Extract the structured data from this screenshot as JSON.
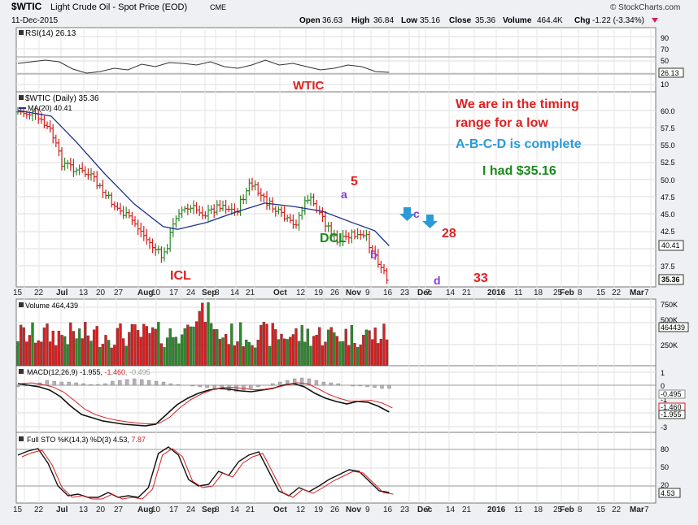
{
  "header": {
    "symbol": "$WTIC",
    "name": "Light Crude Oil - Spot Price (EOD)",
    "exchange": "CME",
    "date": "11-Dec-2015",
    "brand": "© StockCharts.com",
    "open_label": "Open",
    "open": "36.63",
    "high_label": "High",
    "high": "36.84",
    "low_label": "Low",
    "low": "35.16",
    "close_label": "Close",
    "close": "35.36",
    "volume_label": "Volume",
    "volume": "464.4K",
    "chg_label": "Chg",
    "chg": "-1.22 (-3.34%)"
  },
  "rsi_panel": {
    "legend": "RSI(14) 26.13",
    "ticks": [
      "90",
      "70",
      "50",
      "30",
      "10"
    ],
    "last_value": "26.13",
    "annotation": "WTIC"
  },
  "price_panel": {
    "legend_symbol": "$WTIC (Daily) 35.36",
    "legend_ma": "MA(20) 40.41",
    "ticks": [
      "60.0",
      "57.5",
      "55.0",
      "52.5",
      "50.0",
      "47.5",
      "45.0",
      "42.5",
      "37.5"
    ],
    "ma_tag": "40.41",
    "last_tag": "35.36",
    "annotations": {
      "timing1": "We are in the timing",
      "timing2": "range for a low",
      "abcd": "A-B-C-D is complete",
      "had": "I had $35.16",
      "icl": "ICL",
      "dcl": "DCL",
      "five": "5",
      "a": "a",
      "b": "b",
      "c": "c",
      "d": "d",
      "n28": "28",
      "n33": "33"
    }
  },
  "volume_panel": {
    "legend": "Volume 464,439",
    "ticks": [
      "750K",
      "500K",
      "250K"
    ],
    "last_tag": "464439"
  },
  "macd_panel": {
    "legend_a": "MACD(12,26,9) -1.955, ",
    "legend_b": "-1.460",
    "legend_c": ", -0.495",
    "ticks": [
      "1",
      "0",
      "-1",
      "-2",
      "-3"
    ],
    "tag_hist": "-0.495",
    "tag_signal": "-1.460",
    "tag_macd": "-1.955"
  },
  "sto_panel": {
    "legend_a": "Full STO %K(14,3) %D(3) 4.53, ",
    "legend_b": "7.87",
    "ticks": [
      "80",
      "50",
      "20"
    ],
    "last_tag": "4.53"
  },
  "x_axis_labels": [
    "15",
    "22",
    "Jul",
    "13",
    "20",
    "27",
    "Aug",
    "10",
    "17",
    "24",
    "Sep",
    "8",
    "14",
    "21",
    "Oct",
    "12",
    "19",
    "26",
    "Nov",
    "9",
    "16",
    "23",
    "Dec",
    "7",
    "14",
    "21",
    "2016",
    "11",
    "18",
    "25",
    "Feb",
    "8",
    "15",
    "22",
    "Mar",
    "7"
  ],
  "colors": {
    "up": "#2a8a2a",
    "down": "#d42020",
    "ma": "#1d2f8a",
    "annotation_red": "#e02020",
    "annotation_blue": "#2a9ad8",
    "annotation_green": "#1a8a1a",
    "annotation_purple": "#8a3ad8"
  },
  "chart_data": {
    "type": "candlestick",
    "title": "$WTIC Light Crude Oil - Spot Price (EOD)",
    "ylim": [
      35,
      62.5
    ],
    "ma_series": [
      {
        "date": "2015-06-15",
        "value": 60.0
      },
      {
        "date": "2015-07-01",
        "value": 59.2
      },
      {
        "date": "2015-07-13",
        "value": 55.5
      },
      {
        "date": "2015-07-27",
        "value": 50.8
      },
      {
        "date": "2015-08-10",
        "value": 46.5
      },
      {
        "date": "2015-08-24",
        "value": 43.2
      },
      {
        "date": "2015-08-31",
        "value": 42.8
      },
      {
        "date": "2015-09-14",
        "value": 43.8
      },
      {
        "date": "2015-09-28",
        "value": 45.3
      },
      {
        "date": "2015-10-12",
        "value": 46.6
      },
      {
        "date": "2015-10-26",
        "value": 46.1
      },
      {
        "date": "2015-11-09",
        "value": 45.4
      },
      {
        "date": "2015-11-23",
        "value": 43.8
      },
      {
        "date": "2015-12-04",
        "value": 42.6
      },
      {
        "date": "2015-12-11",
        "value": 40.41
      }
    ],
    "close_series": [
      {
        "date": "2015-06-15",
        "value": 59.8
      },
      {
        "date": "2015-06-22",
        "value": 59.5
      },
      {
        "date": "2015-07-01",
        "value": 57.0
      },
      {
        "date": "2015-07-06",
        "value": 52.5
      },
      {
        "date": "2015-07-13",
        "value": 51.5
      },
      {
        "date": "2015-07-20",
        "value": 50.5
      },
      {
        "date": "2015-07-27",
        "value": 47.8
      },
      {
        "date": "2015-08-03",
        "value": 45.5
      },
      {
        "date": "2015-08-10",
        "value": 43.8
      },
      {
        "date": "2015-08-17",
        "value": 41.0
      },
      {
        "date": "2015-08-24",
        "value": 38.6
      },
      {
        "date": "2015-08-31",
        "value": 45.5
      },
      {
        "date": "2015-09-08",
        "value": 45.8
      },
      {
        "date": "2015-09-14",
        "value": 45.0
      },
      {
        "date": "2015-09-21",
        "value": 46.5
      },
      {
        "date": "2015-09-28",
        "value": 45.2
      },
      {
        "date": "2015-10-05",
        "value": 49.5
      },
      {
        "date": "2015-10-12",
        "value": 47.0
      },
      {
        "date": "2015-10-19",
        "value": 45.0
      },
      {
        "date": "2015-10-26",
        "value": 43.2
      },
      {
        "date": "2015-11-02",
        "value": 47.5
      },
      {
        "date": "2015-11-09",
        "value": 44.5
      },
      {
        "date": "2015-11-16",
        "value": 40.7
      },
      {
        "date": "2015-11-23",
        "value": 42.0
      },
      {
        "date": "2015-11-30",
        "value": 41.5
      },
      {
        "date": "2015-12-07",
        "value": 37.5
      },
      {
        "date": "2015-12-11",
        "value": 35.36
      }
    ],
    "annotations": {
      "ICL": "2015-08-24",
      "DCL": "2015-10-28",
      "5": "2015-11-04",
      "a": "2015-11-02",
      "b": "2015-11-16",
      "c": "2015-12-01",
      "d": "2015-12-11"
    }
  }
}
